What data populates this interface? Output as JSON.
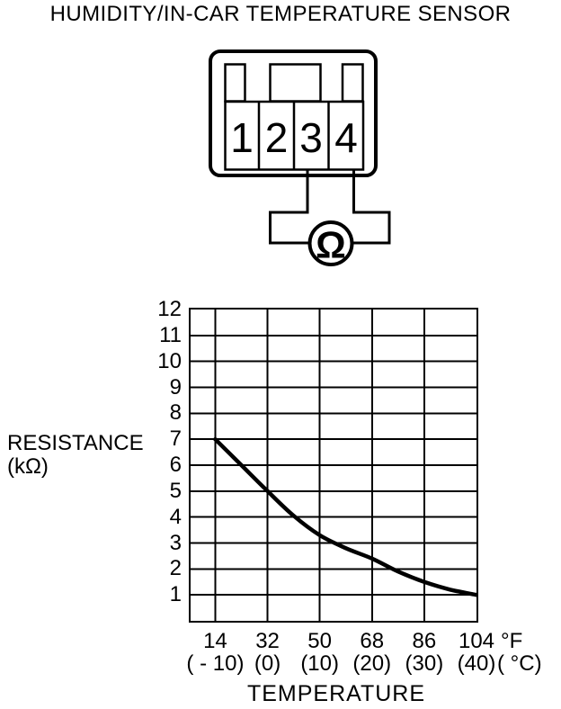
{
  "title": "HUMIDITY/IN-CAR TEMPERATURE SENSOR",
  "connector": {
    "description": "4-pin sensor connector with ohmmeter across pins 3 and 4",
    "pins": [
      "1",
      "2",
      "3",
      "4"
    ],
    "meter_symbol": "Ω"
  },
  "chart_data": {
    "type": "line",
    "title": "",
    "xlabel": "TEMPERATURE",
    "ylabel_line1": "RESISTANCE",
    "ylabel_line2": "(kΩ)",
    "x_unit_f": "°F",
    "x_unit_c": "( °C)",
    "xlim_f": [
      5.5,
      104
    ],
    "ylim": [
      0,
      12
    ],
    "grid": true,
    "legend": false,
    "y_ticks": [
      1,
      2,
      3,
      4,
      5,
      6,
      7,
      8,
      9,
      10,
      11,
      12
    ],
    "x_ticks": [
      {
        "value": 14,
        "f": "14",
        "c": "( - 10)"
      },
      {
        "value": 32,
        "f": "32",
        "c": "(0)"
      },
      {
        "value": 50,
        "f": "50",
        "c": "(10)"
      },
      {
        "value": 68,
        "f": "68",
        "c": "(20)"
      },
      {
        "value": 86,
        "f": "86",
        "c": "(30)"
      },
      {
        "value": 104,
        "f": "104",
        "c": "(40)"
      }
    ],
    "series": [
      {
        "name": "Resistance vs temperature",
        "points_f_kohm": [
          [
            14,
            7.0
          ],
          [
            23,
            6.0
          ],
          [
            32,
            5.0
          ],
          [
            41,
            4.05
          ],
          [
            50,
            3.3
          ],
          [
            59,
            2.8
          ],
          [
            68,
            2.4
          ],
          [
            77,
            1.9
          ],
          [
            86,
            1.5
          ],
          [
            95,
            1.2
          ],
          [
            104,
            1.0
          ]
        ]
      }
    ]
  }
}
